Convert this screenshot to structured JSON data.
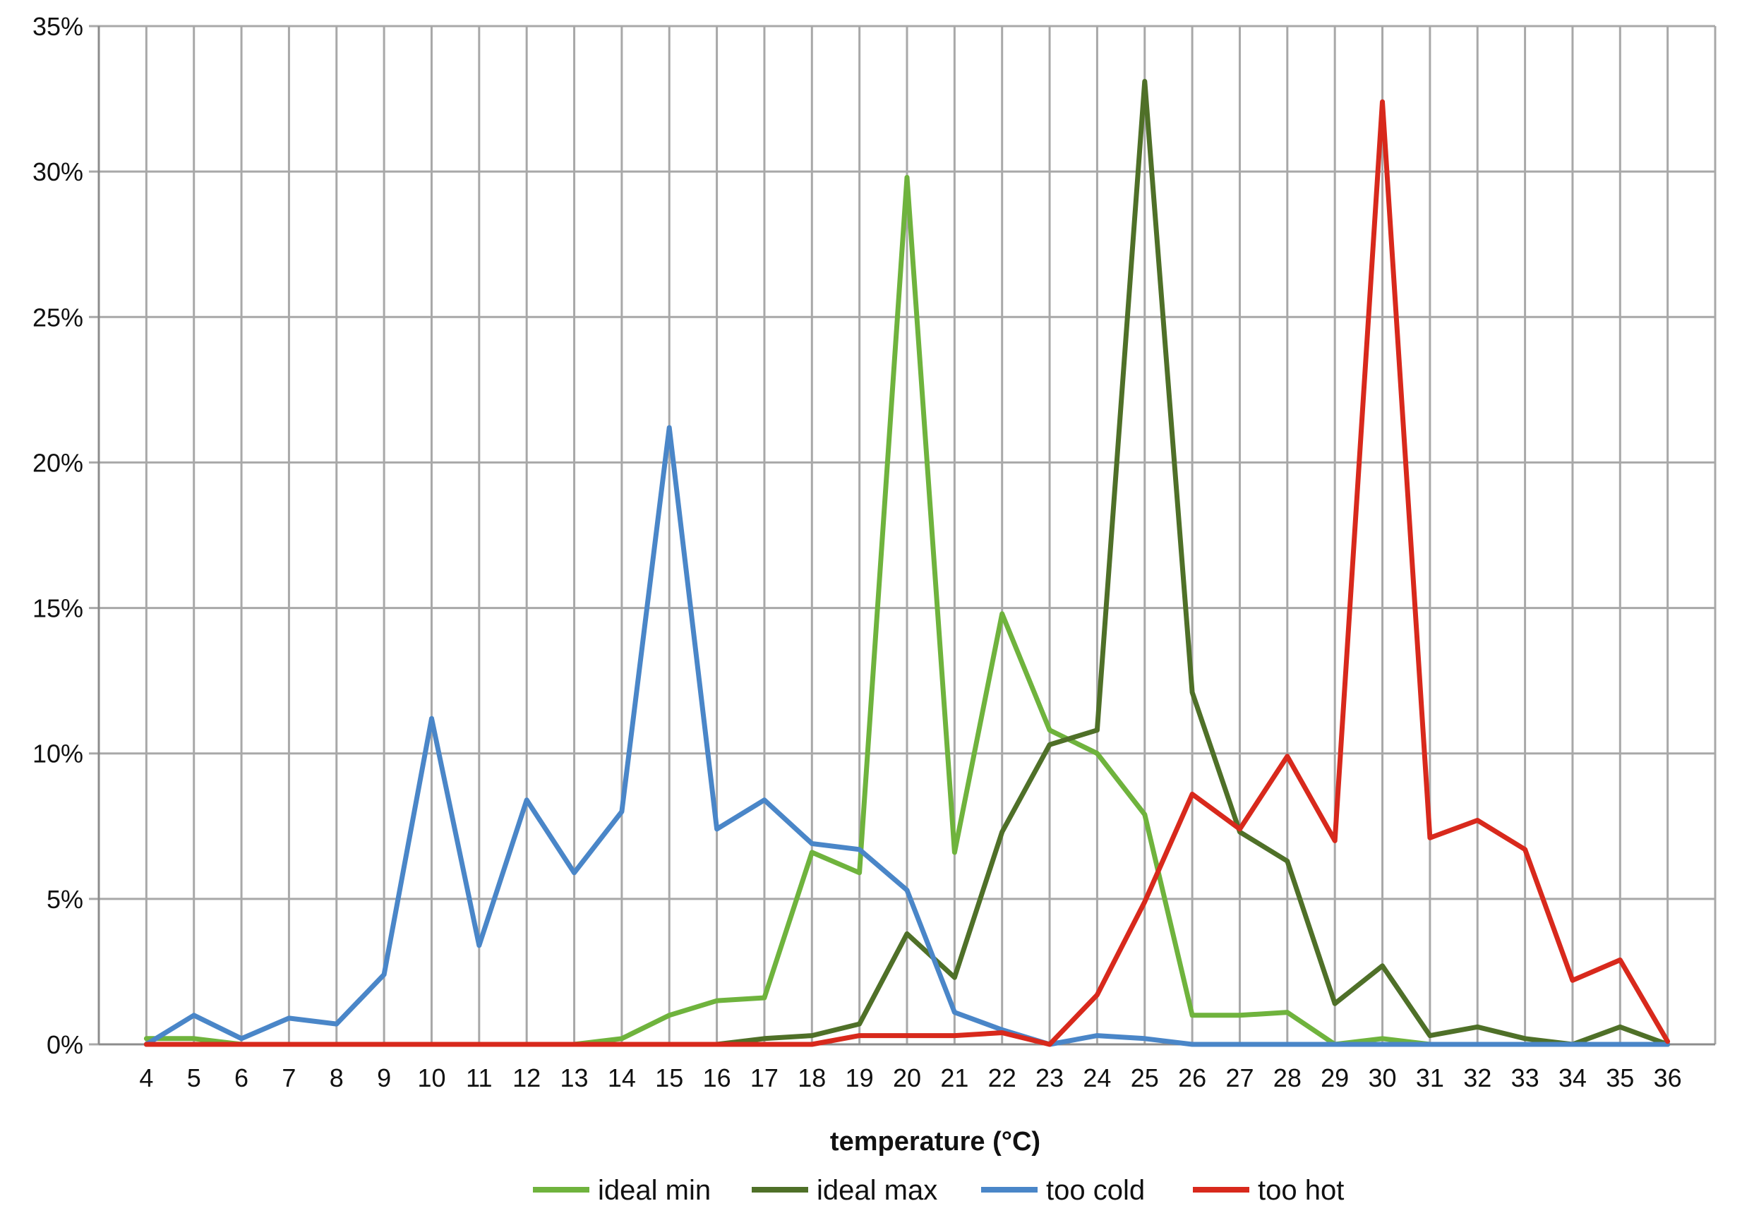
{
  "chart_data": {
    "type": "line",
    "title": "",
    "xlabel": "temperature (°C)",
    "ylabel": "",
    "x": [
      4,
      5,
      6,
      7,
      8,
      9,
      10,
      11,
      12,
      13,
      14,
      15,
      16,
      17,
      18,
      19,
      20,
      21,
      22,
      23,
      24,
      25,
      26,
      27,
      28,
      29,
      30,
      31,
      32,
      33,
      34,
      35,
      36
    ],
    "ylim": [
      0,
      35
    ],
    "y_ticks": [
      "0%",
      "5%",
      "10%",
      "15%",
      "20%",
      "25%",
      "30%",
      "35%"
    ],
    "grid": true,
    "legend_position": "bottom",
    "series": [
      {
        "name": "ideal min",
        "color": "#6fb33d",
        "values": [
          0.2,
          0.2,
          0,
          0,
          0,
          0,
          0,
          0,
          0,
          0,
          0.2,
          1.0,
          1.5,
          1.6,
          6.6,
          5.9,
          29.8,
          6.6,
          14.8,
          10.8,
          10.0,
          7.9,
          1.0,
          1.0,
          1.1,
          0,
          0.2,
          0,
          0,
          0,
          0,
          0,
          0
        ]
      },
      {
        "name": "ideal max",
        "color": "#4f7028",
        "values": [
          0,
          0,
          0,
          0,
          0,
          0,
          0,
          0,
          0,
          0,
          0,
          0,
          0,
          0.2,
          0.3,
          0.7,
          3.8,
          2.3,
          7.3,
          10.3,
          10.8,
          33.1,
          12.1,
          7.3,
          6.3,
          1.4,
          2.7,
          0.3,
          0.6,
          0.2,
          0,
          0.6,
          0
        ]
      },
      {
        "name": "too cold",
        "color": "#4a86c8",
        "values": [
          0,
          1.0,
          0.2,
          0.9,
          0.7,
          2.4,
          11.2,
          3.4,
          8.4,
          5.9,
          8.0,
          21.2,
          7.4,
          8.4,
          6.9,
          6.7,
          5.3,
          1.1,
          0.5,
          0,
          0.3,
          0.2,
          0,
          0,
          0,
          0,
          0,
          0,
          0,
          0,
          0,
          0,
          0
        ]
      },
      {
        "name": "too hot",
        "color": "#d8291c",
        "values": [
          0,
          0,
          0,
          0,
          0,
          0,
          0,
          0,
          0,
          0,
          0,
          0,
          0,
          0,
          0,
          0.3,
          0.3,
          0.3,
          0.4,
          0,
          1.7,
          4.9,
          8.6,
          7.4,
          9.9,
          7.0,
          32.4,
          7.1,
          7.7,
          6.7,
          2.2,
          2.9,
          0.1
        ]
      }
    ]
  }
}
